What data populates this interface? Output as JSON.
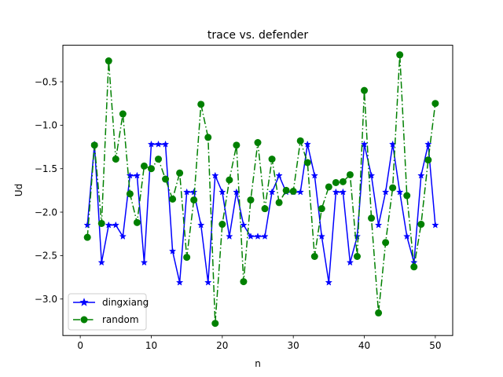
{
  "chart_data": {
    "type": "line",
    "title": "trace vs. defender",
    "xlabel": "n",
    "ylabel": "Ud",
    "xlim": [
      -2.45,
      52.45
    ],
    "ylim": [
      -3.42,
      -0.08
    ],
    "xticks": [
      0,
      10,
      20,
      30,
      40,
      50
    ],
    "yticks": [
      -3.0,
      -2.5,
      -2.0,
      -1.5,
      -1.0,
      -0.5
    ],
    "xtick_labels": [
      "0",
      "10",
      "20",
      "30",
      "40",
      "50"
    ],
    "ytick_labels": [
      "−3.0",
      "−2.5",
      "−2.0",
      "−1.5",
      "−1.0",
      "−0.5"
    ],
    "grid": false,
    "legend_position": "lower-left",
    "x": [
      1,
      2,
      3,
      4,
      5,
      6,
      7,
      8,
      9,
      10,
      11,
      12,
      13,
      14,
      15,
      16,
      17,
      18,
      19,
      20,
      21,
      22,
      23,
      24,
      25,
      26,
      27,
      28,
      29,
      30,
      31,
      32,
      33,
      34,
      35,
      36,
      37,
      38,
      39,
      40,
      41,
      42,
      43,
      44,
      45,
      46,
      47,
      48,
      49,
      50
    ],
    "series": [
      {
        "name": "dingxiang",
        "color": "#0000ff",
        "line_style": "solid",
        "marker": "star",
        "values": [
          -2.15,
          -1.22,
          -2.58,
          -2.15,
          -2.15,
          -2.28,
          -1.58,
          -1.58,
          -2.58,
          -1.22,
          -1.22,
          -1.22,
          -2.45,
          -2.81,
          -1.77,
          -1.77,
          -2.15,
          -2.81,
          -1.58,
          -1.77,
          -2.28,
          -1.77,
          -2.15,
          -2.28,
          -2.28,
          -2.28,
          -1.77,
          -1.58,
          -1.77,
          -1.77,
          -1.77,
          -1.22,
          -1.58,
          -2.28,
          -2.81,
          -1.77,
          -1.77,
          -2.58,
          -2.28,
          -1.22,
          -1.58,
          -2.15,
          -1.77,
          -1.22,
          -1.77,
          -2.28,
          -2.58,
          -1.58,
          -1.22,
          -2.15
        ]
      },
      {
        "name": "random",
        "color": "#008000",
        "line_style": "dashdot",
        "marker": "circle",
        "values": [
          -2.29,
          -1.23,
          -2.13,
          -0.26,
          -1.39,
          -0.87,
          -1.79,
          -2.12,
          -1.47,
          -1.5,
          -1.39,
          -1.62,
          -1.85,
          -1.55,
          -2.52,
          -1.86,
          -0.76,
          -1.14,
          -3.28,
          -2.14,
          -1.63,
          -1.23,
          -2.8,
          -1.86,
          -1.2,
          -1.96,
          -1.39,
          -1.89,
          -1.75,
          -1.76,
          -1.18,
          -1.43,
          -2.51,
          -1.96,
          -1.71,
          -1.66,
          -1.65,
          -1.57,
          -2.51,
          -0.6,
          -2.07,
          -3.16,
          -2.35,
          -1.72,
          -0.19,
          -1.81,
          -2.63,
          -2.14,
          -1.4,
          -0.75
        ]
      }
    ]
  }
}
